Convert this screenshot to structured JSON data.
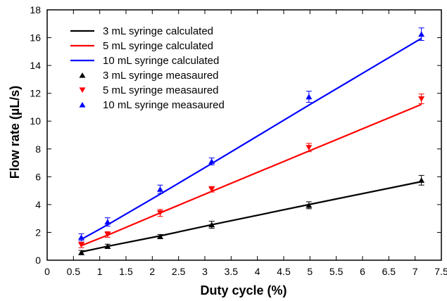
{
  "chart_data": {
    "type": "line",
    "xlabel": "Duty cycle (%)",
    "ylabel": "Flow rate (µL/s)",
    "xlim": [
      0,
      7.5
    ],
    "ylim": [
      0,
      18
    ],
    "xticks": [
      "0",
      "0.5",
      "1",
      "1.5",
      "2",
      "2.5",
      "3",
      "3.5",
      "4",
      "4.5",
      "5",
      "5.5",
      "6",
      "6.5",
      "7",
      "7.5"
    ],
    "yticks": [
      "0",
      "2",
      "4",
      "6",
      "8",
      "10",
      "12",
      "14",
      "16",
      "18"
    ],
    "grid": false,
    "legend_position": "top-left",
    "series": [
      {
        "name": "3 mL syringe calculated",
        "kind": "line",
        "color": "#000000",
        "x": [
          0.65,
          1.15,
          2.15,
          3.13,
          4.98,
          7.12
        ],
        "y": [
          0.6,
          1.0,
          1.75,
          2.55,
          4.0,
          5.65
        ]
      },
      {
        "name": "5 mL syringe calculated",
        "kind": "line",
        "color": "#ff0000",
        "x": [
          0.65,
          1.15,
          2.15,
          3.13,
          4.98,
          7.12
        ],
        "y": [
          1.05,
          1.8,
          3.4,
          4.95,
          7.85,
          11.2
        ]
      },
      {
        "name": "10 mL syringe calculated",
        "kind": "line",
        "color": "#0000ff",
        "x": [
          0.65,
          1.15,
          2.15,
          3.13,
          4.98,
          7.12
        ],
        "y": [
          1.5,
          2.55,
          4.75,
          6.95,
          11.15,
          15.95
        ]
      },
      {
        "name": "3 mL syringe measaured",
        "kind": "marker",
        "marker": "triangle-up",
        "color": "#000000",
        "x": [
          0.65,
          1.15,
          2.15,
          3.13,
          4.98,
          7.12
        ],
        "y": [
          0.55,
          1.0,
          1.7,
          2.55,
          3.95,
          5.75
        ],
        "err": [
          0.15,
          0.15,
          0.15,
          0.25,
          0.25,
          0.35
        ]
      },
      {
        "name": "5 mL syringe measaured",
        "kind": "marker",
        "marker": "triangle-down",
        "color": "#ff0000",
        "x": [
          0.65,
          1.15,
          2.15,
          3.13,
          4.98,
          7.12
        ],
        "y": [
          1.1,
          1.85,
          3.4,
          5.1,
          8.1,
          11.6
        ],
        "err": [
          0.2,
          0.2,
          0.25,
          0.2,
          0.3,
          0.35
        ]
      },
      {
        "name": "10 mL syringe measaured",
        "kind": "marker",
        "marker": "triangle-up",
        "color": "#0000ff",
        "x": [
          0.65,
          1.15,
          2.15,
          3.13,
          4.98,
          7.12
        ],
        "y": [
          1.65,
          2.75,
          5.1,
          7.1,
          11.75,
          16.25
        ],
        "err": [
          0.25,
          0.3,
          0.3,
          0.25,
          0.4,
          0.45
        ]
      }
    ]
  }
}
